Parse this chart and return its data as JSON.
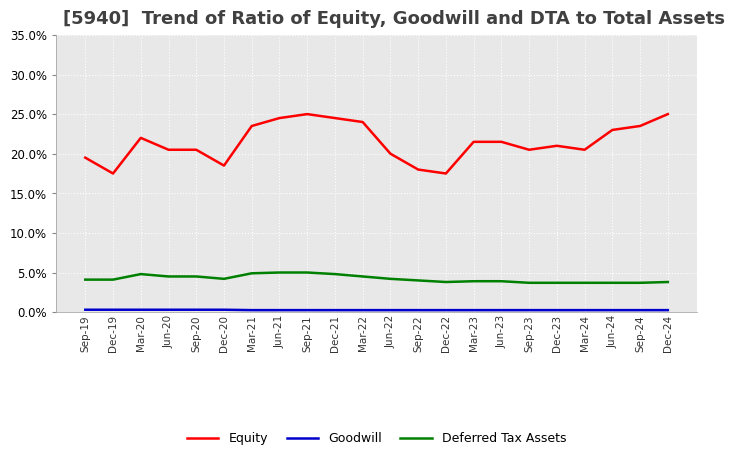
{
  "title": "[5940]  Trend of Ratio of Equity, Goodwill and DTA to Total Assets",
  "xlabels": [
    "Sep-19",
    "Dec-19",
    "Mar-20",
    "Jun-20",
    "Sep-20",
    "Dec-20",
    "Mar-21",
    "Jun-21",
    "Sep-21",
    "Dec-21",
    "Mar-22",
    "Jun-22",
    "Sep-22",
    "Dec-22",
    "Mar-23",
    "Jun-23",
    "Sep-23",
    "Dec-23",
    "Mar-24",
    "Jun-24",
    "Sep-24",
    "Dec-24"
  ],
  "equity": [
    19.5,
    17.5,
    22.0,
    20.5,
    20.5,
    18.5,
    23.5,
    24.5,
    25.0,
    24.5,
    24.0,
    20.0,
    18.0,
    17.5,
    21.5,
    21.5,
    20.5,
    21.0,
    20.5,
    23.0,
    23.5,
    25.0
  ],
  "goodwill": [
    0.3,
    0.3,
    0.3,
    0.3,
    0.3,
    0.3,
    0.25,
    0.25,
    0.25,
    0.25,
    0.25,
    0.25,
    0.25,
    0.25,
    0.25,
    0.25,
    0.25,
    0.25,
    0.25,
    0.25,
    0.25,
    0.25
  ],
  "dta": [
    4.1,
    4.1,
    4.8,
    4.5,
    4.5,
    4.2,
    4.9,
    5.0,
    5.0,
    4.8,
    4.5,
    4.2,
    4.0,
    3.8,
    3.9,
    3.9,
    3.7,
    3.7,
    3.7,
    3.7,
    3.7,
    3.8
  ],
  "equity_color": "#FF0000",
  "goodwill_color": "#0000CC",
  "dta_color": "#008000",
  "ylim": [
    0.0,
    35.0
  ],
  "yticks": [
    0.0,
    5.0,
    10.0,
    15.0,
    20.0,
    25.0,
    30.0,
    35.0
  ],
  "background_color": "#FFFFFF",
  "plot_bg_color": "#E8E8E8",
  "grid_color": "#FFFFFF",
  "title_fontsize": 13,
  "title_color": "#404040"
}
